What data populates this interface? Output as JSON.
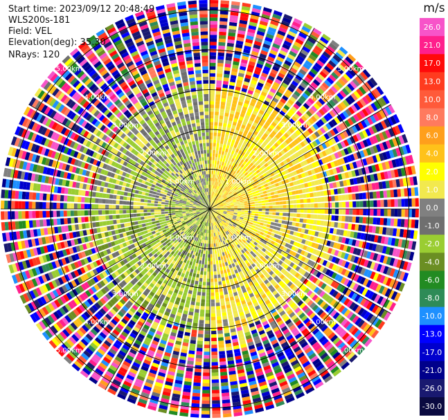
{
  "header": {
    "start_time": "Start time: 2023/09/12 20:48:49",
    "station": "WLS200s-181",
    "field": "Field: VEL",
    "elevation": "Elevation(deg): 35.30",
    "nrays": "NRays: 120"
  },
  "colorbar": {
    "unit": "m/s",
    "ticks": [
      "26.0",
      "21.0",
      "17.0",
      "13.0",
      "10.0",
      "8.0",
      "6.0",
      "4.0",
      "2.0",
      "1.0",
      "0.0",
      "-1.0",
      "-2.0",
      "-4.0",
      "-6.0",
      "-8.0",
      "-10.0",
      "-13.0",
      "-17.0",
      "-21.0",
      "-26.0",
      "-30.0"
    ],
    "colors": [
      "#f754c9",
      "#ff1f8c",
      "#ff0a0a",
      "#ff3b1f",
      "#ff5a3a",
      "#ff7a5e",
      "#ff9f1c",
      "#ffc21a",
      "#ffff00",
      "#f2e94e",
      "#808080",
      "#6f6f6f",
      "#9acd32",
      "#6b8e23",
      "#228b22",
      "#2e8b57",
      "#1e90ff",
      "#0000ff",
      "#0000cd",
      "#00008b",
      "#191970",
      "#0a0a40"
    ]
  },
  "chart_data": {
    "type": "heatmap",
    "subtype": "PPI radar display",
    "field": "VEL",
    "units": "m/s",
    "vmin": -30.0,
    "vmax": 26.0,
    "n_rays": 120,
    "elevation_deg": 35.3,
    "range_ring_labels": [
      "1.00km",
      "2.00km",
      "3.00km",
      "4.00km",
      "5.00km"
    ],
    "range_ring_label_positions": [
      "NW",
      "NE",
      "SW",
      "SE"
    ],
    "sectors": [
      {
        "azimuth_from": 0,
        "azimuth_to": 90,
        "dominant_velocity_ms": 2.0,
        "description": "yellow/orange positive velocities"
      },
      {
        "azimuth_from": 90,
        "azimuth_to": 180,
        "dominant_velocity_ms": 1.0,
        "description": "yellow with gray"
      },
      {
        "azimuth_from": 180,
        "azimuth_to": 270,
        "dominant_velocity_ms": -3.0,
        "description": "green negative velocities"
      },
      {
        "azimuth_from": 270,
        "azimuth_to": 360,
        "dominant_velocity_ms": -2.0,
        "description": "light green with gray"
      }
    ],
    "outer_noise": "random colored gates beyond about 3.5 km"
  }
}
